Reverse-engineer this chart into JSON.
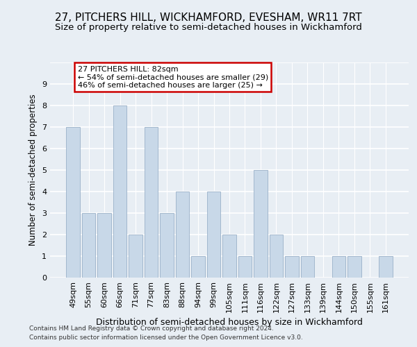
{
  "title": "27, PITCHERS HILL, WICKHAMFORD, EVESHAM, WR11 7RT",
  "subtitle": "Size of property relative to semi-detached houses in Wickhamford",
  "xlabel": "Distribution of semi-detached houses by size in Wickhamford",
  "ylabel": "Number of semi-detached properties",
  "categories": [
    "49sqm",
    "55sqm",
    "60sqm",
    "66sqm",
    "71sqm",
    "77sqm",
    "83sqm",
    "88sqm",
    "94sqm",
    "99sqm",
    "105sqm",
    "111sqm",
    "116sqm",
    "122sqm",
    "127sqm",
    "133sqm",
    "139sqm",
    "144sqm",
    "150sqm",
    "155sqm",
    "161sqm"
  ],
  "values": [
    7,
    3,
    3,
    8,
    2,
    7,
    3,
    4,
    1,
    4,
    2,
    1,
    5,
    2,
    1,
    1,
    0,
    1,
    1,
    0,
    1
  ],
  "bar_color": "#c8d8e8",
  "bar_edge_color": "#9ab0c8",
  "highlight_index": 6,
  "annotation_text": "27 PITCHERS HILL: 82sqm\n← 54% of semi-detached houses are smaller (29)\n46% of semi-detached houses are larger (25) →",
  "annotation_box_color": "white",
  "annotation_box_edge_color": "#cc0000",
  "footer1": "Contains HM Land Registry data © Crown copyright and database right 2024.",
  "footer2": "Contains public sector information licensed under the Open Government Licence v3.0.",
  "ylim": [
    0,
    10
  ],
  "yticks": [
    0,
    1,
    2,
    3,
    4,
    5,
    6,
    7,
    8,
    9,
    10
  ],
  "background_color": "#e8eef4",
  "grid_color": "#ffffff",
  "title_fontsize": 11,
  "subtitle_fontsize": 9.5,
  "ann_fontsize": 8,
  "xlabel_fontsize": 9,
  "ylabel_fontsize": 8.5,
  "tick_fontsize": 8,
  "footer_fontsize": 6.5
}
